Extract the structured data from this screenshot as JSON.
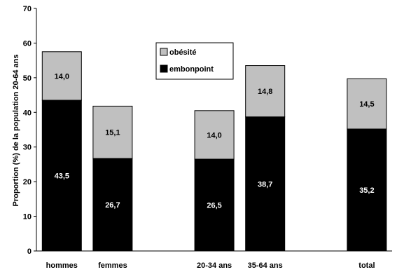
{
  "chart_data": {
    "type": "bar",
    "stacked": true,
    "ylabel": "Proportion (%) de la population 20-64 ans",
    "ylim": [
      0,
      70
    ],
    "yticks": [
      0,
      10,
      20,
      30,
      40,
      50,
      60,
      70
    ],
    "categories": [
      "hommes",
      "femmes",
      "20-34 ans",
      "35-64 ans",
      "total"
    ],
    "series": [
      {
        "name": "embonpoint",
        "color": "#000000",
        "label_color": "#ffffff",
        "values": [
          43.5,
          26.7,
          26.5,
          38.7,
          35.2
        ],
        "labels": [
          "43,5",
          "26,7",
          "26,5",
          "38,7",
          "35,2"
        ]
      },
      {
        "name": "obésité",
        "color": "#c0c0c0",
        "label_color": "#000000",
        "values": [
          14.0,
          15.1,
          14.0,
          14.8,
          14.5
        ],
        "labels": [
          "14,0",
          "15,1",
          "14,0",
          "14,8",
          "14,5"
        ]
      }
    ],
    "legend": {
      "placement": "top-center-left",
      "order": [
        "obésité",
        "embonpoint"
      ]
    },
    "grid": false
  }
}
